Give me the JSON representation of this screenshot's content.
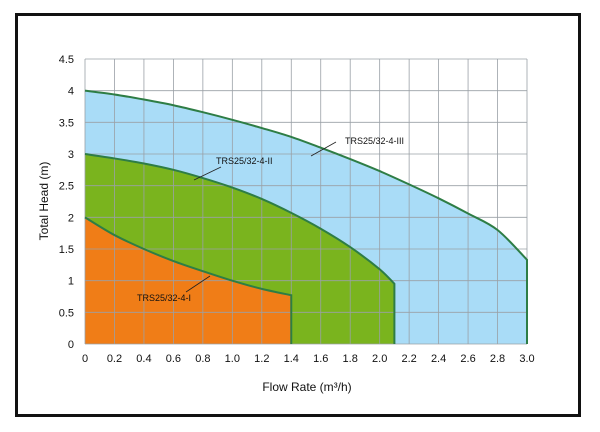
{
  "chart_data": {
    "type": "area",
    "title": "",
    "xlabel": "Flow Rate (m³/h)",
    "ylabel": "Total  Head (m)",
    "xlim": [
      0,
      3.0
    ],
    "ylim": [
      0,
      4.5
    ],
    "x_ticks": [
      "0",
      "0.2",
      "0.4",
      "0.6",
      "0.8",
      "1.0",
      "1.2",
      "1.4",
      "1.6",
      "1.8",
      "2.0",
      "2.2",
      "2.4",
      "2.6",
      "2.8",
      "3.0"
    ],
    "y_ticks": [
      "0",
      "0.5",
      "1",
      "1.5",
      "2",
      "2.5",
      "3",
      "3.5",
      "4",
      "4.5"
    ],
    "grid": true,
    "series": [
      {
        "name": "TRS25/32-4-III",
        "fill": "#a9dcf7",
        "x": [
          0,
          0.2,
          0.4,
          0.6,
          0.8,
          1.0,
          1.2,
          1.4,
          1.6,
          1.8,
          2.0,
          2.2,
          2.4,
          2.6,
          2.8,
          3.0
        ],
        "y": [
          4.0,
          3.94,
          3.86,
          3.77,
          3.66,
          3.54,
          3.41,
          3.27,
          3.1,
          2.92,
          2.73,
          2.52,
          2.3,
          2.06,
          1.8,
          1.33
        ]
      },
      {
        "name": "TRS25/32-4-II",
        "fill": "#7ab41e",
        "x": [
          0,
          0.2,
          0.4,
          0.6,
          0.8,
          1.0,
          1.2,
          1.4,
          1.6,
          1.8,
          2.0,
          2.1
        ],
        "y": [
          3.0,
          2.93,
          2.85,
          2.75,
          2.62,
          2.47,
          2.29,
          2.07,
          1.82,
          1.53,
          1.18,
          0.95
        ]
      },
      {
        "name": "TRS25/32-4-I",
        "fill": "#f07d17",
        "x": [
          0,
          0.2,
          0.4,
          0.6,
          0.8,
          1.0,
          1.2,
          1.4
        ],
        "y": [
          2.0,
          1.72,
          1.5,
          1.31,
          1.15,
          1.0,
          0.87,
          0.77
        ]
      }
    ]
  }
}
